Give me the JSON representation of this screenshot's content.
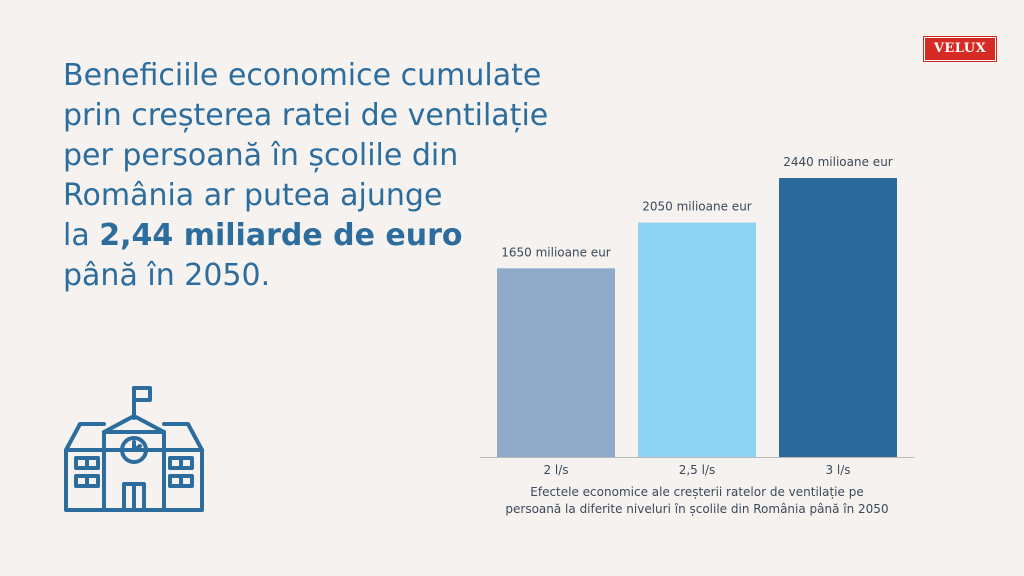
{
  "brand": {
    "logo_text": "VELUX"
  },
  "headline": {
    "line1": "Beneficiile economice cumulate",
    "line2": "prin creșterea ratei de ventilație",
    "line3": "per persoană în școlile din",
    "line4": "România ar putea ajunge",
    "line5_prefix": "la ",
    "line5_bold": "2,44 miliarde de euro",
    "line6": "până în 2050."
  },
  "chart_data": {
    "type": "bar",
    "categories": [
      "2 l/s",
      "2,5 l/s",
      "3 l/s"
    ],
    "values": [
      1650,
      2050,
      2440
    ],
    "data_labels": [
      "1650 milioane eur",
      "2050 milioane eur",
      "2440 milioane eur"
    ],
    "colors": [
      "#8faac8",
      "#8fd3f3",
      "#2b6a9b"
    ],
    "ylim": [
      0,
      2440
    ],
    "grid": false,
    "title": "",
    "xlabel": "",
    "ylabel": "",
    "caption_line1": "Efectele economice ale creșterii ratelor de ventilație pe",
    "caption_line2": "persoană la diferite niveluri în școlile din România până în 2050"
  },
  "icons": {
    "school": "school-building-icon"
  },
  "colors": {
    "background": "#f5f2ef",
    "accent": "#2c6d9e",
    "logo": "#d62b25"
  }
}
